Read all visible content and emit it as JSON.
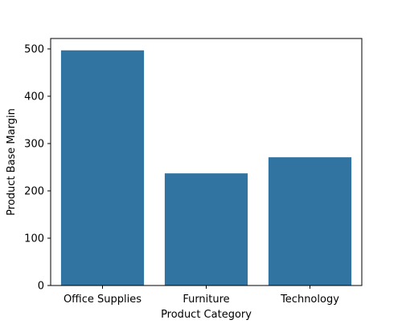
{
  "chart_data": {
    "type": "bar",
    "title": "",
    "xlabel": "Product Category",
    "ylabel": "Product Base Margin",
    "categories": [
      "Office Supplies",
      "Furniture",
      "Technology"
    ],
    "values": [
      497,
      237,
      271
    ],
    "ylim": [
      0,
      522
    ],
    "yticks": [
      0,
      100,
      200,
      300,
      400,
      500
    ],
    "grid": false,
    "legend": "none",
    "bar_color": "#3274a1"
  }
}
